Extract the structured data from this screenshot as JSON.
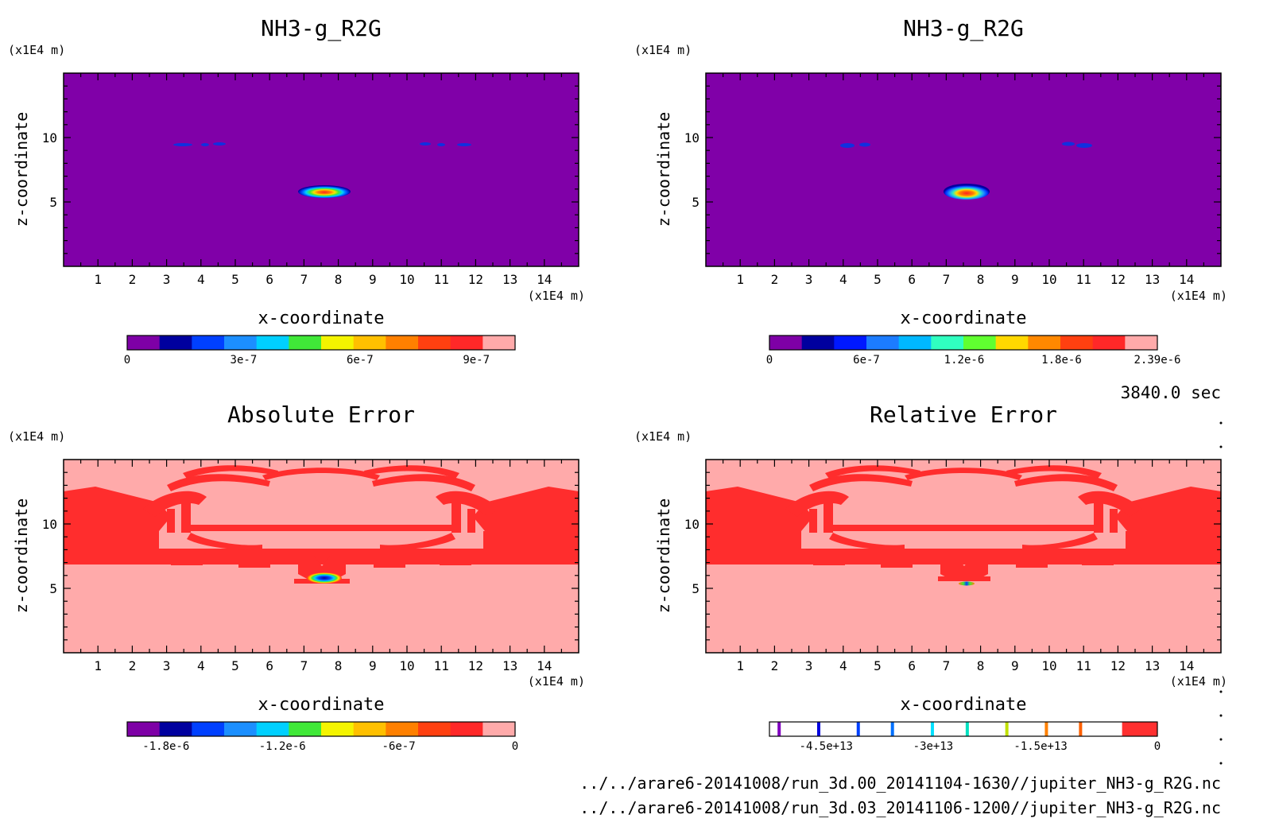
{
  "time_label": "3840.0 sec",
  "files": [
    "../../arare6-20141008/run_3d.00_20141104-1630//jupiter_NH3-g_R2G.nc",
    "../../arare6-20141008/run_3d.03_20141106-1200//jupiter_NH3-g_R2G.nc"
  ],
  "colors": {
    "background_purple": "#8000a8",
    "error_background": "#ffaaaa",
    "error_red": "#ff2d2d"
  },
  "chart_data": [
    {
      "type": "heatmap",
      "title": "NH3-g_R2G",
      "xlabel": "x-coordinate",
      "ylabel": "z-coordinate",
      "x_unit": "(x1E4 m)",
      "y_unit": "(x1E4 m)",
      "xlim": [
        0,
        15
      ],
      "ylim": [
        0,
        15
      ],
      "x_ticks": [
        1,
        2,
        3,
        4,
        5,
        6,
        7,
        8,
        9,
        10,
        11,
        12,
        13,
        14
      ],
      "y_ticks": [
        5,
        10
      ],
      "features": [
        {
          "kind": "blob",
          "x": 7.6,
          "z": 5.8,
          "w": 1.4,
          "h": 0.55
        },
        {
          "kind": "speck",
          "x": 3.5,
          "z": 9.3
        },
        {
          "kind": "speck",
          "x": 4.2,
          "z": 9.3
        },
        {
          "kind": "speck",
          "x": 4.6,
          "z": 9.3
        },
        {
          "kind": "speck",
          "x": 10.5,
          "z": 9.35
        },
        {
          "kind": "speck",
          "x": 11.0,
          "z": 9.3
        },
        {
          "kind": "speck",
          "x": 11.6,
          "z": 9.3
        }
      ],
      "colorbar": {
        "colors": [
          "#7e00a6",
          "#00009e",
          "#0040ff",
          "#1c8fff",
          "#00d0ff",
          "#40e838",
          "#f4f400",
          "#ffc000",
          "#ff8000",
          "#ff4010",
          "#ff2828",
          "#ffaaaa"
        ],
        "tick_labels": [
          "0",
          "3e-7",
          "6e-7",
          "9e-7"
        ],
        "tick_positions": [
          0,
          0.3,
          0.6,
          0.9
        ]
      }
    },
    {
      "type": "heatmap",
      "title": "NH3-g_R2G",
      "xlabel": "x-coordinate",
      "ylabel": "z-coordinate",
      "x_unit": "(x1E4 m)",
      "y_unit": "(x1E4 m)",
      "xlim": [
        0,
        15
      ],
      "ylim": [
        0,
        15
      ],
      "x_ticks": [
        1,
        2,
        3,
        4,
        5,
        6,
        7,
        8,
        9,
        10,
        11,
        12,
        13,
        14
      ],
      "y_ticks": [
        5,
        10
      ],
      "features": [
        {
          "kind": "blob",
          "x": 7.6,
          "z": 5.7,
          "w": 1.3,
          "h": 0.7
        },
        {
          "kind": "speck",
          "x": 4.2,
          "z": 9.3
        },
        {
          "kind": "speck",
          "x": 4.6,
          "z": 9.35
        },
        {
          "kind": "speck",
          "x": 10.8,
          "z": 9.35
        },
        {
          "kind": "speck",
          "x": 11.1,
          "z": 9.3
        }
      ],
      "colorbar": {
        "colors": [
          "#7e00a6",
          "#00009e",
          "#0018ff",
          "#1c7cff",
          "#00b8ff",
          "#30ffc0",
          "#60ff30",
          "#ffd800",
          "#ff8800",
          "#ff4010",
          "#ff2828",
          "#ffaaaa"
        ],
        "tick_labels": [
          "0",
          "6e-7",
          "1.2e-6",
          "1.8e-6",
          "2.39e-6"
        ],
        "tick_positions": [
          0,
          0.25,
          0.502,
          0.753,
          1.0
        ]
      }
    },
    {
      "type": "heatmap",
      "title": "Absolute Error",
      "xlabel": "x-coordinate",
      "ylabel": "z-coordinate",
      "x_unit": "(x1E4 m)",
      "y_unit": "(x1E4 m)",
      "xlim": [
        0,
        15
      ],
      "ylim": [
        0,
        15
      ],
      "x_ticks": [
        1,
        2,
        3,
        4,
        5,
        6,
        7,
        8,
        9,
        10,
        11,
        12,
        13,
        14
      ],
      "y_ticks": [
        5,
        10
      ],
      "features": [
        {
          "kind": "blob",
          "x": 7.6,
          "z": 5.6,
          "w": 1.3,
          "h": 0.45
        }
      ],
      "colorbar": {
        "colors": [
          "#7e00a6",
          "#00009e",
          "#0040ff",
          "#1c8fff",
          "#00d0ff",
          "#40e838",
          "#f4f400",
          "#ffc000",
          "#ff8000",
          "#ff4010",
          "#ff2828",
          "#ffaaaa"
        ],
        "tick_labels": [
          "-1.8e-6",
          "-1.2e-6",
          "-6e-7",
          "0"
        ],
        "tick_positions": [
          0.1,
          0.4,
          0.7,
          1.0
        ]
      }
    },
    {
      "type": "heatmap",
      "title": "Relative Error",
      "xlabel": "x-coordinate",
      "ylabel": "z-coordinate",
      "x_unit": "(x1E4 m)",
      "y_unit": "(x1E4 m)",
      "xlim": [
        0,
        15
      ],
      "ylim": [
        0,
        15
      ],
      "x_ticks": [
        1,
        2,
        3,
        4,
        5,
        6,
        7,
        8,
        9,
        10,
        11,
        12,
        13,
        14
      ],
      "y_ticks": [
        5,
        10
      ],
      "features": [
        {
          "kind": "blob",
          "x": 7.6,
          "z": 5.3,
          "w": 0.7,
          "h": 0.2
        }
      ],
      "colorbar": {
        "colors": [
          "#ffffff",
          "#ffffff",
          "#ffffff",
          "#ffffff",
          "#ffffff",
          "#ffffff",
          "#ffffff",
          "#ffffff",
          "#ffffff",
          "#ffffff",
          "#ff3030"
        ],
        "line_colors": [
          "#8000c0",
          "#0000e0",
          "#0040ff",
          "#0070ff",
          "#00e0ff",
          "#00e0c0",
          "#c0e000",
          "#ff8000",
          "#ff6000"
        ],
        "line_positions": [
          0.025,
          0.127,
          0.229,
          0.317,
          0.42,
          0.51,
          0.612,
          0.714,
          0.802
        ],
        "tick_labels": [
          "-4.5e+13",
          "-3e+13",
          "-1.5e+13",
          "0"
        ],
        "tick_positions": [
          0.146,
          0.422,
          0.699,
          1.0
        ]
      }
    }
  ]
}
